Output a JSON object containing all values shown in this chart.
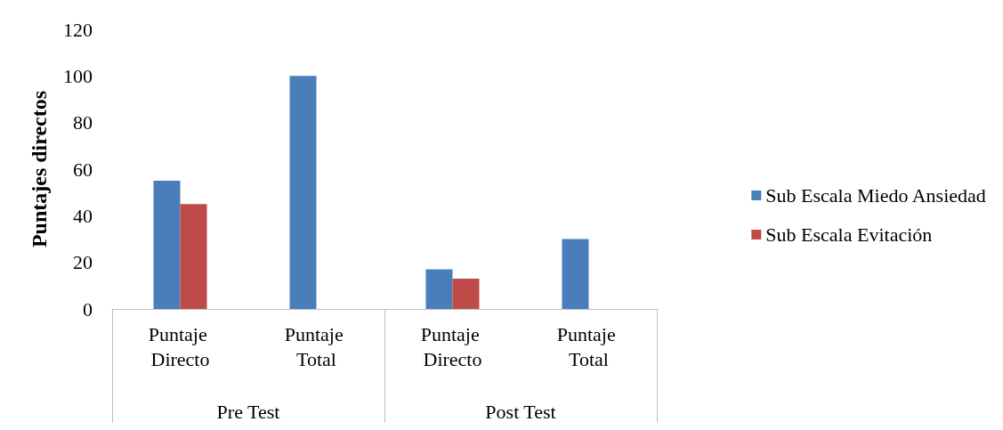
{
  "chart_data": {
    "type": "bar",
    "ylabel": "Puntajes directos",
    "categories": [
      "Puntaje Directo",
      "Puntaje Total",
      "Puntaje Directo",
      "Puntaje Total"
    ],
    "annotations": [
      "Pre Test",
      "Post Test"
    ],
    "series": [
      {
        "name": "Sub Escala Miedo Ansiedad",
        "color": "#4a7ebb",
        "values": [
          55,
          100,
          17,
          30
        ]
      },
      {
        "name": "Sub Escala Evitación",
        "color": "#be4b48",
        "values": [
          45,
          null,
          13,
          null
        ]
      }
    ],
    "ylim": [
      0,
      120
    ],
    "yticks": [
      0,
      20,
      40,
      60,
      80,
      100,
      120
    ],
    "grid": false,
    "legend": "right"
  }
}
